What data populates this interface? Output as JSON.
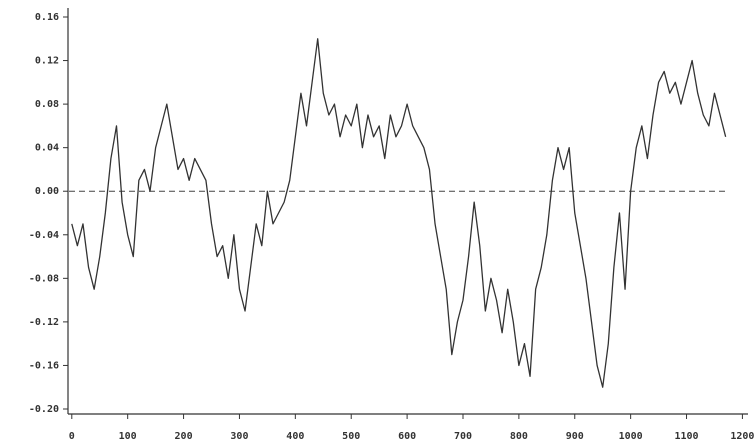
{
  "chart_data": {
    "type": "line",
    "x": [
      0,
      10,
      20,
      30,
      40,
      50,
      60,
      70,
      80,
      90,
      100,
      110,
      120,
      130,
      140,
      150,
      160,
      170,
      180,
      190,
      200,
      210,
      220,
      230,
      240,
      250,
      260,
      270,
      280,
      290,
      300,
      310,
      320,
      330,
      340,
      350,
      360,
      370,
      380,
      390,
      400,
      410,
      420,
      430,
      440,
      450,
      460,
      470,
      480,
      490,
      500,
      510,
      520,
      530,
      540,
      550,
      560,
      570,
      580,
      590,
      600,
      610,
      620,
      630,
      640,
      650,
      660,
      670,
      680,
      690,
      700,
      710,
      720,
      730,
      740,
      750,
      760,
      770,
      780,
      790,
      800,
      810,
      820,
      830,
      840,
      850,
      860,
      870,
      880,
      890,
      900,
      910,
      920,
      930,
      940,
      950,
      960,
      970,
      980,
      990,
      1000,
      1010,
      1020,
      1030,
      1040,
      1050,
      1060,
      1070,
      1080,
      1090,
      1100,
      1110,
      1120,
      1130,
      1140,
      1150,
      1160,
      1170
    ],
    "values": [
      -0.03,
      -0.05,
      -0.03,
      -0.07,
      -0.09,
      -0.06,
      -0.02,
      0.03,
      0.06,
      -0.01,
      -0.04,
      -0.06,
      0.01,
      0.02,
      0.0,
      0.04,
      0.06,
      0.08,
      0.05,
      0.02,
      0.03,
      0.01,
      0.03,
      0.02,
      0.01,
      -0.03,
      -0.06,
      -0.05,
      -0.08,
      -0.04,
      -0.09,
      -0.11,
      -0.07,
      -0.03,
      -0.05,
      0.0,
      -0.03,
      -0.02,
      -0.01,
      0.01,
      0.05,
      0.09,
      0.06,
      0.1,
      0.14,
      0.09,
      0.07,
      0.08,
      0.05,
      0.07,
      0.06,
      0.08,
      0.04,
      0.07,
      0.05,
      0.06,
      0.03,
      0.07,
      0.05,
      0.06,
      0.08,
      0.06,
      0.05,
      0.04,
      0.02,
      -0.03,
      -0.06,
      -0.09,
      -0.15,
      -0.12,
      -0.1,
      -0.06,
      -0.01,
      -0.05,
      -0.11,
      -0.08,
      -0.1,
      -0.13,
      -0.09,
      -0.12,
      -0.16,
      -0.14,
      -0.17,
      -0.09,
      -0.07,
      -0.04,
      0.01,
      0.04,
      0.02,
      0.04,
      -0.02,
      -0.05,
      -0.08,
      -0.12,
      -0.16,
      -0.18,
      -0.14,
      -0.07,
      -0.02,
      -0.09,
      0.0,
      0.04,
      0.06,
      0.03,
      0.07,
      0.1,
      0.11,
      0.09,
      0.1,
      0.08,
      0.1,
      0.12,
      0.09,
      0.07,
      0.06,
      0.09,
      0.07,
      0.05
    ],
    "color": "#333333",
    "xlim": [
      -5,
      1210
    ],
    "xticks": [
      0,
      100,
      200,
      300,
      400,
      500,
      600,
      700,
      800,
      900,
      1000,
      1100,
      1200
    ],
    "ylim": [
      -0.2,
      0.16
    ],
    "yticks": [
      0.16,
      0.12,
      0.08,
      0.04,
      {
        "value": 0,
        "label": "0.00"
      },
      -0.04,
      -0.08,
      -0.12,
      -0.16,
      {
        "value": -0.2,
        "label": "-0.20"
      }
    ],
    "hline": 0
  }
}
